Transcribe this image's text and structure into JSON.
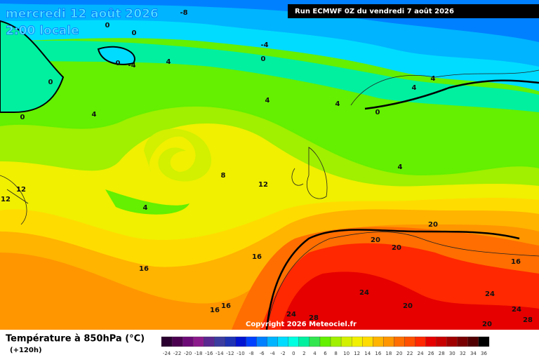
{
  "header": {
    "date": "mercredi 12 août 2026",
    "time": "2:00 locale",
    "run": "Run ECMWF 0Z du vendredi 7 août 2026"
  },
  "contour_labels": [
    "-8",
    "0",
    "0",
    "0",
    "-4",
    "0",
    "-4",
    "4",
    "0",
    "0",
    "4",
    "4",
    "4",
    "0",
    "4",
    "4",
    "4",
    "8",
    "12",
    "4",
    "12",
    "12",
    "16",
    "16",
    "16",
    "16",
    "20",
    "20",
    "20",
    "20",
    "24",
    "24",
    "28",
    "16",
    "24",
    "24",
    "20",
    "28"
  ],
  "copyright": "Copyright 2026 Meteociel.fr",
  "footer": {
    "title": "Température à 850hPa (°C)",
    "lead": "(+120h)"
  },
  "legend": {
    "labels": [
      "-24",
      "-22",
      "-20",
      "-18",
      "-16",
      "-14",
      "-12",
      "-10",
      "-8",
      "-6",
      "-4",
      "-2",
      "0",
      "2",
      "4",
      "6",
      "8",
      "10",
      "12",
      "14",
      "16",
      "18",
      "20",
      "22",
      "24",
      "26",
      "28",
      "30",
      "32",
      "34",
      "36"
    ],
    "colors": [
      "#2a0030",
      "#4b0050",
      "#6e0a78",
      "#8c1a8c",
      "#5a2890",
      "#3c3ca0",
      "#1e32b4",
      "#0014d2",
      "#0040ff",
      "#0080ff",
      "#00b4ff",
      "#00dcff",
      "#00ffe0",
      "#00f0a0",
      "#32e650",
      "#64f000",
      "#a0f000",
      "#d2f000",
      "#f0f000",
      "#ffdc00",
      "#ffb400",
      "#ff9600",
      "#ff6e00",
      "#ff5000",
      "#ff2800",
      "#e60000",
      "#c80000",
      "#a00000",
      "#780000",
      "#500000",
      "#000000"
    ]
  }
}
